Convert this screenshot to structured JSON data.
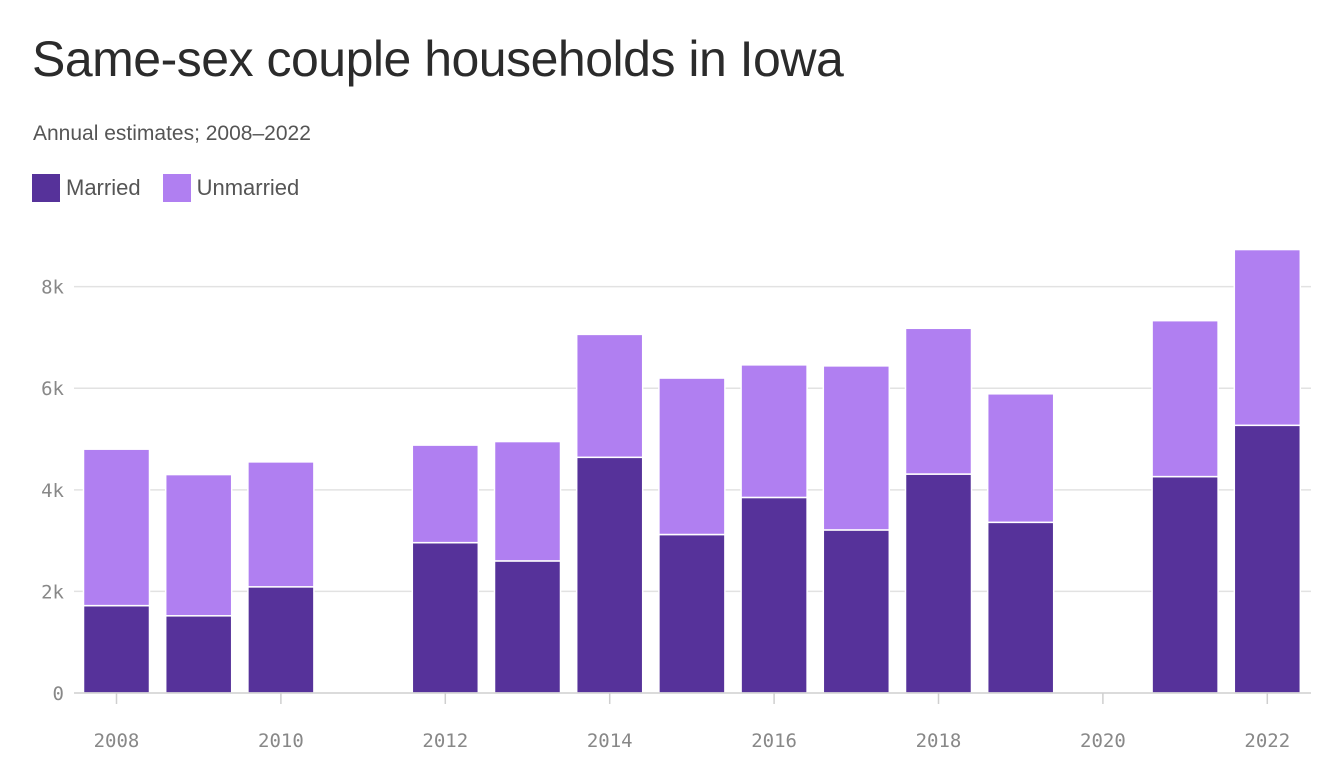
{
  "chart_data": {
    "type": "bar",
    "stacked": true,
    "title": "Same-sex couple households in Iowa",
    "subtitle": "Annual estimates; 2008–2022",
    "xlabel": "",
    "ylabel": "",
    "ylim": [
      0,
      8800
    ],
    "yticks": [
      0,
      2000,
      4000,
      6000,
      8000
    ],
    "ytick_labels": [
      "0",
      "2k",
      "4k",
      "6k",
      "8k"
    ],
    "xticks": [
      2008,
      2010,
      2012,
      2014,
      2016,
      2018,
      2020,
      2022
    ],
    "xtick_labels": [
      "2008",
      "2010",
      "2012",
      "2014",
      "2016",
      "2018",
      "2020",
      "2022"
    ],
    "grid": true,
    "legend_position": "top-left",
    "x": [
      2008,
      2009,
      2010,
      2012,
      2013,
      2014,
      2015,
      2016,
      2017,
      2018,
      2019,
      2021,
      2022
    ],
    "series": [
      {
        "name": "Married",
        "color": "#56329a",
        "values": [
          1720,
          1520,
          2090,
          2960,
          2600,
          4640,
          3120,
          3850,
          3210,
          4310,
          3360,
          4260,
          5270
        ]
      },
      {
        "name": "Unmarried",
        "color": "#b07ff1",
        "values": [
          3080,
          2780,
          2460,
          1920,
          2350,
          2420,
          3080,
          2610,
          3230,
          2870,
          2530,
          3070,
          3460
        ]
      }
    ]
  }
}
